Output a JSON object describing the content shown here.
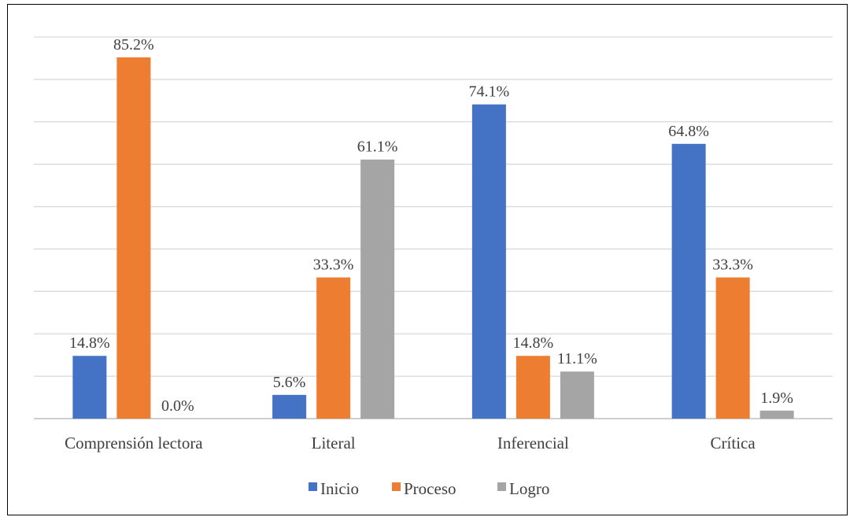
{
  "chart_data": {
    "type": "bar",
    "title": "",
    "xlabel": "",
    "ylabel": "",
    "ylim": [
      0,
      90
    ],
    "grid": true,
    "legend_position": "bottom",
    "categories": [
      "Comprensión lectora",
      "Literal",
      "Inferencial",
      "Crítica"
    ],
    "series": [
      {
        "name": "Inicio",
        "color": "#4472C4",
        "values": [
          14.8,
          5.6,
          74.1,
          64.8
        ],
        "labels": [
          "14.8%",
          "5.6%",
          "74.1%",
          "64.8%"
        ]
      },
      {
        "name": "Proceso",
        "color": "#ED7D31",
        "values": [
          85.2,
          33.3,
          14.8,
          33.3
        ],
        "labels": [
          "85.2%",
          "33.3%",
          "14.8%",
          "33.3%"
        ]
      },
      {
        "name": "Logro",
        "color": "#A5A5A5",
        "values": [
          0.0,
          61.1,
          11.1,
          1.9
        ],
        "labels": [
          "0.0%",
          "61.1%",
          "11.1%",
          "1.9%"
        ]
      }
    ]
  }
}
